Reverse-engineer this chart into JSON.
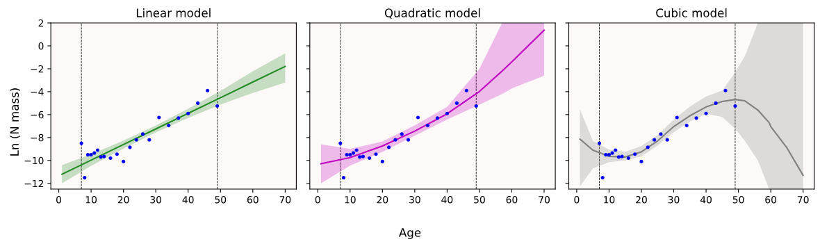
{
  "chart_data": [
    {
      "type": "scatter",
      "title": "Linear model",
      "ylabel": "Ln (N mass)",
      "xlim": [
        -2.45,
        73.45
      ],
      "ylim": [
        -12.5,
        2
      ],
      "xticks": [
        0,
        10,
        20,
        30,
        40,
        50,
        60,
        70
      ],
      "yticks": [
        -12,
        -10,
        -8,
        -6,
        -4,
        -2,
        0,
        2
      ],
      "grid": false,
      "ref_lines": [
        {
          "axis": "x",
          "value": 7,
          "color": "#000000",
          "line_style": "dashed"
        },
        {
          "axis": "x",
          "value": 49,
          "color": "#000000",
          "line_style": "dashed"
        }
      ],
      "series": [
        {
          "marker": "circle",
          "color": "#0000ff",
          "x": [
            7,
            8,
            9,
            10,
            11,
            12,
            13,
            14,
            16,
            18,
            20,
            22,
            24,
            26,
            28,
            31,
            34,
            37,
            40,
            43,
            46,
            49
          ],
          "values": [
            -8.5,
            -11.5,
            -9.5,
            -9.5,
            -9.35,
            -9.1,
            -9.7,
            -9.65,
            -9.8,
            -9.45,
            -10.1,
            -8.85,
            -8.2,
            -7.7,
            -8.2,
            -6.25,
            -6.95,
            -6.3,
            -5.9,
            -5.0,
            -3.9,
            -5.25
          ]
        },
        {
          "type": "line",
          "color": "#228b22",
          "x": [
            1,
            10,
            20,
            30,
            40,
            50,
            60,
            70
          ],
          "values": [
            -11.2,
            -9.97,
            -8.61,
            -7.25,
            -5.89,
            -4.53,
            -3.16,
            -1.8
          ],
          "lower": [
            -12.0,
            -10.47,
            -8.96,
            -7.55,
            -6.29,
            -5.13,
            -4.11,
            -3.2
          ],
          "upper": [
            -10.4,
            -9.47,
            -8.26,
            -6.95,
            -5.49,
            -3.93,
            -2.21,
            -0.65
          ]
        }
      ]
    },
    {
      "type": "scatter",
      "title": "Quadratic model",
      "xlabel": "Age",
      "xlim": [
        -2.45,
        73.45
      ],
      "ylim": [
        -12.5,
        2
      ],
      "xticks": [
        0,
        10,
        20,
        30,
        40,
        50,
        60,
        70
      ],
      "yticks": [
        -12,
        -10,
        -8,
        -6,
        -4,
        -2,
        0,
        2
      ],
      "tick_labels": "x",
      "grid": false,
      "ref_lines": [
        {
          "axis": "x",
          "value": 7,
          "color": "#000000",
          "line_style": "dashed"
        },
        {
          "axis": "x",
          "value": 49,
          "color": "#000000",
          "line_style": "dashed"
        }
      ],
      "series": [
        {
          "marker": "circle",
          "color": "#0000ff",
          "x": [
            7,
            8,
            9,
            10,
            11,
            12,
            13,
            14,
            16,
            18,
            20,
            22,
            24,
            26,
            28,
            31,
            34,
            37,
            40,
            43,
            46,
            49
          ],
          "values": [
            -8.5,
            -11.5,
            -9.5,
            -9.5,
            -9.35,
            -9.1,
            -9.7,
            -9.65,
            -9.8,
            -9.45,
            -10.1,
            -8.85,
            -8.2,
            -7.7,
            -8.2,
            -6.25,
            -6.95,
            -6.3,
            -5.9,
            -5.0,
            -3.9,
            -5.25
          ]
        },
        {
          "type": "line",
          "color": "#c000c0",
          "x": [
            1,
            10,
            20,
            30,
            40,
            50,
            57,
            60,
            70
          ],
          "values": [
            -10.29,
            -9.75,
            -8.74,
            -7.44,
            -5.93,
            -3.98,
            -2.2,
            -1.4,
            1.37
          ],
          "lower": [
            -12.0,
            -10.45,
            -9.25,
            -7.84,
            -6.43,
            -5.13,
            -4.2,
            -3.72,
            -2.6
          ],
          "upper": [
            -8.58,
            -9.0,
            -8.34,
            -6.93,
            -5.33,
            -2.0,
            2.0,
            2.0,
            2.0
          ]
        }
      ]
    },
    {
      "type": "scatter",
      "title": "Cubic model",
      "xlim": [
        -2.45,
        73.45
      ],
      "ylim": [
        -12.5,
        2
      ],
      "xticks": [
        0,
        10,
        20,
        30,
        40,
        50,
        60,
        70
      ],
      "yticks": [
        -12,
        -10,
        -8,
        -6,
        -4,
        -2,
        0,
        2
      ],
      "tick_labels": "x",
      "grid": false,
      "ref_lines": [
        {
          "axis": "x",
          "value": 7,
          "color": "#000000",
          "line_style": "dashed"
        },
        {
          "axis": "x",
          "value": 49,
          "color": "#000000",
          "line_style": "dashed"
        }
      ],
      "series": [
        {
          "marker": "circle",
          "color": "#0000ff",
          "x": [
            7,
            8,
            9,
            10,
            11,
            12,
            13,
            14,
            16,
            18,
            20,
            22,
            24,
            26,
            28,
            31,
            34,
            37,
            40,
            43,
            46,
            49
          ],
          "values": [
            -8.5,
            -11.5,
            -9.5,
            -9.5,
            -9.35,
            -9.1,
            -9.7,
            -9.65,
            -9.8,
            -9.45,
            -10.1,
            -8.85,
            -8.2,
            -7.7,
            -8.2,
            -6.25,
            -6.95,
            -6.3,
            -5.9,
            -5.0,
            -3.9,
            -5.25
          ]
        },
        {
          "type": "line",
          "color": "#808080",
          "x": [
            1,
            5,
            10,
            15,
            20,
            25,
            30,
            35,
            40,
            45,
            49,
            52,
            56,
            59.5,
            60,
            65,
            70
          ],
          "values": [
            -8.14,
            -9.1,
            -9.65,
            -9.7,
            -9.25,
            -8.3,
            -7.04,
            -6.1,
            -5.33,
            -4.85,
            -4.68,
            -4.8,
            -5.6,
            -6.7,
            -7.04,
            -8.9,
            -11.3
          ],
          "lower": [
            -12.26,
            -10.7,
            -10.15,
            -10.0,
            -9.65,
            -8.7,
            -7.54,
            -6.6,
            -5.93,
            -6.2,
            -7.24,
            -8.3,
            -10.0,
            -12.5,
            -12.5,
            -12.5,
            -12.5
          ],
          "upper": [
            -5.53,
            -8.3,
            -9.05,
            -9.25,
            -8.74,
            -7.8,
            -6.43,
            -5.3,
            -4.42,
            -3.9,
            -2.31,
            -0.9,
            2.0,
            2.0,
            2.0,
            2.0,
            2.0
          ]
        }
      ]
    }
  ]
}
